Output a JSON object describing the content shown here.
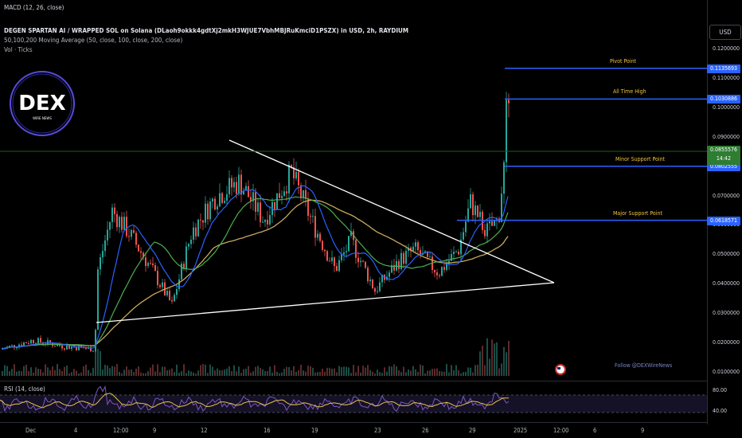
{
  "header": {
    "macd_label": "MACD (12, 26, close)"
  },
  "legend": {
    "title": "DEGEN SPARTAN AI / WRAPPED SOL on Solana (DLaoh9okkk4gdtXj2mkH3WJUE7VbhMBJRuKmciD1PSZX) in USD, 2h, RAYDIUM",
    "ma": "50,100,200 Moving Average (50, close, 100, close, 200, close)",
    "vol": "Vol · Ticks"
  },
  "logo": {
    "text": "DEX",
    "subtext": "WIRE NEWS"
  },
  "currency": "USD",
  "price_axis": [
    {
      "label": "0.1200000",
      "value": 0.12
    },
    {
      "label": "0.1100000",
      "value": 0.11
    },
    {
      "label": "0.1000000",
      "value": 0.1
    },
    {
      "label": "0.0900000",
      "value": 0.09
    },
    {
      "label": "0.0700000",
      "value": 0.07
    },
    {
      "label": "0.0600000",
      "value": 0.06
    },
    {
      "label": "0.0500000",
      "value": 0.05
    },
    {
      "label": "0.0400000",
      "value": 0.04
    },
    {
      "label": "0.0300000",
      "value": 0.03
    },
    {
      "label": "0.0200000",
      "value": 0.02
    },
    {
      "label": "0.0100000",
      "value": 0.01
    }
  ],
  "levels": [
    {
      "name": "Pivot Point",
      "value": 0.1135693,
      "box": "0.1135693"
    },
    {
      "name": "All Time High",
      "value": 0.1030886,
      "box": "0.1030886"
    },
    {
      "name": "Minor Support Point",
      "value": 0.0802555,
      "box": "0.0802555"
    },
    {
      "name": "Major Support Point",
      "value": 0.0618571,
      "box": "0.0618571"
    }
  ],
  "current_price": {
    "label": "0.0855576",
    "countdown": "14:42",
    "value": 0.0855576
  },
  "rsi": {
    "label": "RSI (14, close)",
    "levels": [
      "80.00",
      "40.00"
    ]
  },
  "follow_text": "Follow @DEXWireNews",
  "time_axis": [
    "Dec",
    "4",
    "12:00",
    "9",
    "12",
    "16",
    "19",
    "23",
    "26",
    "29",
    "2025",
    "12:00",
    "6",
    "9"
  ],
  "colors": {
    "level_line": "#2962ff",
    "level_text": "#f0c43c",
    "up": "#26a69a",
    "down": "#ef5350",
    "ma50": "#2962ff",
    "ma100": "#4caf50",
    "ma200": "#c8a85a",
    "rsi": "#7e57c2",
    "rsi_ma": "#e6c34a"
  }
}
